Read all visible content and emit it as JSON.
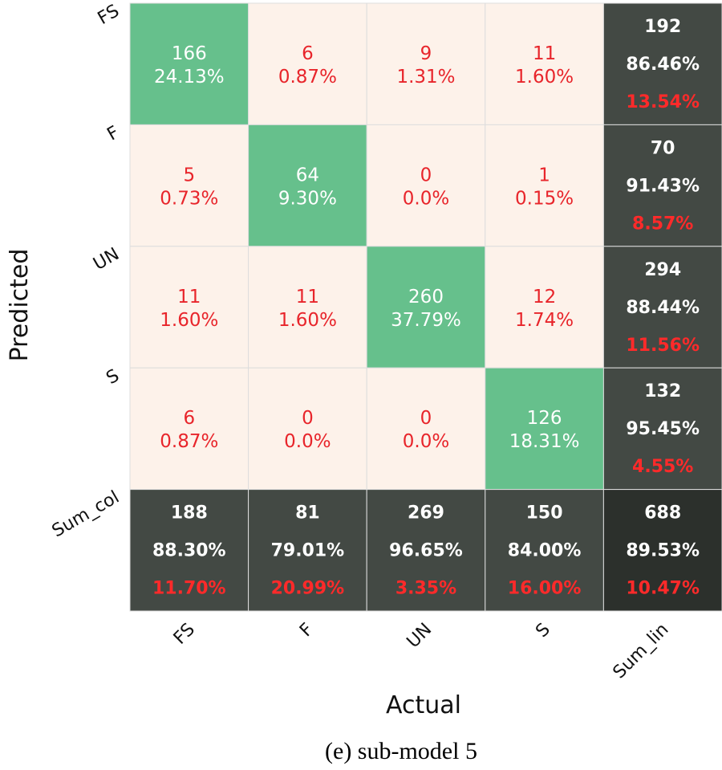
{
  "chart_data": {
    "type": "heatmap",
    "title": "",
    "caption": "(e) sub-model 5",
    "xlabel": "Actual",
    "ylabel": "Predicted",
    "x_tick_labels": [
      "FS",
      "F",
      "UN",
      "S",
      "Sum_lin"
    ],
    "y_tick_labels": [
      "FS",
      "F",
      "UN",
      "S",
      "Sum_col"
    ],
    "cells": [
      [
        {
          "count": "166",
          "pct": "24.13%"
        },
        {
          "count": "6",
          "pct": "0.87%"
        },
        {
          "count": "9",
          "pct": "1.31%"
        },
        {
          "count": "11",
          "pct": "1.60%"
        }
      ],
      [
        {
          "count": "5",
          "pct": "0.73%"
        },
        {
          "count": "64",
          "pct": "9.30%"
        },
        {
          "count": "0",
          "pct": "0.0%"
        },
        {
          "count": "1",
          "pct": "0.15%"
        }
      ],
      [
        {
          "count": "11",
          "pct": "1.60%"
        },
        {
          "count": "11",
          "pct": "1.60%"
        },
        {
          "count": "260",
          "pct": "37.79%"
        },
        {
          "count": "12",
          "pct": "1.74%"
        }
      ],
      [
        {
          "count": "6",
          "pct": "0.87%"
        },
        {
          "count": "0",
          "pct": "0.0%"
        },
        {
          "count": "0",
          "pct": "0.0%"
        },
        {
          "count": "126",
          "pct": "18.31%"
        }
      ]
    ],
    "row_sums": [
      {
        "total": "192",
        "correct": "86.46%",
        "error": "13.54%"
      },
      {
        "total": "70",
        "correct": "91.43%",
        "error": "8.57%"
      },
      {
        "total": "294",
        "correct": "88.44%",
        "error": "11.56%"
      },
      {
        "total": "132",
        "correct": "95.45%",
        "error": "4.55%"
      }
    ],
    "col_sums": [
      {
        "total": "188",
        "correct": "88.30%",
        "error": "11.70%"
      },
      {
        "total": "81",
        "correct": "79.01%",
        "error": "20.99%"
      },
      {
        "total": "269",
        "correct": "96.65%",
        "error": "3.35%"
      },
      {
        "total": "150",
        "correct": "84.00%",
        "error": "16.00%"
      }
    ],
    "overall": {
      "total": "688",
      "correct": "89.53%",
      "error": "10.47%"
    },
    "colors": {
      "diagonal": "#66c08c",
      "off_diagonal": "#fdf2ea",
      "sum_cell": "#434944",
      "overall_cell": "#2c302c",
      "off_text": "#e8252b",
      "diag_text": "#ffffff",
      "sum_text": "#ffffff",
      "error_text": "#ff2a2a",
      "grid_line": "#dddddd"
    }
  }
}
